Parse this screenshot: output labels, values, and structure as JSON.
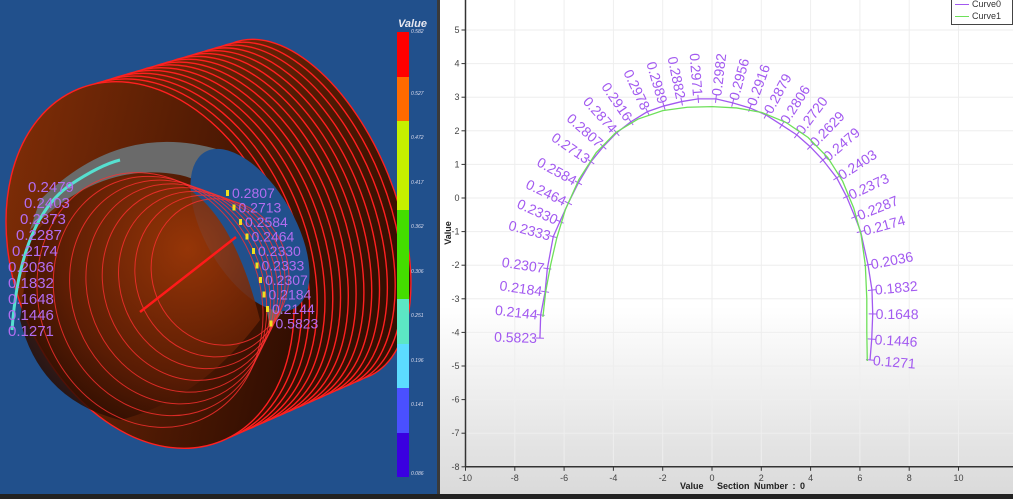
{
  "view3d": {
    "colorbar": {
      "title": "Value",
      "colors": [
        "#ff0000",
        "#ff6a00",
        "#c6f000",
        "#c6f000",
        "#44dd00",
        "#44dd00",
        "#5ce6c4",
        "#5cdcff",
        "#4a50ff",
        "#3a00e0"
      ],
      "labels": [
        "0.582",
        "0.527",
        "0.472",
        "0.417",
        "0.362",
        "0.306",
        "0.251",
        "0.196",
        "0.141",
        "0.086"
      ]
    },
    "overlay_left": [
      "0.2479",
      "0.2403",
      "0.2373",
      "0.2287",
      "0.2174",
      "0.2036",
      "0.1832",
      "0.1648",
      "0.1446",
      "0.1271"
    ],
    "overlay_right": [
      "0.2807",
      "0.2713",
      "0.2584",
      "0.2464",
      "0.2330",
      "0.2333",
      "0.2307",
      "0.2184",
      "0.2144",
      "0.5823"
    ],
    "label_color": "#b26df0",
    "background": "#21508c"
  },
  "chart_data": {
    "type": "line",
    "title": "",
    "xlabel": "Value",
    "xlabel_extra": "Section Number : 0",
    "ylabel": "Value",
    "xlim": [
      -10,
      10
    ],
    "ylim": [
      -8,
      5.9
    ],
    "xticks": [
      -10,
      -8,
      -6,
      -4,
      -2,
      0,
      2,
      4,
      6,
      8,
      10
    ],
    "yticks": [
      5,
      4,
      3,
      2,
      1,
      0,
      -1,
      -2,
      -3,
      -4,
      -5,
      -6,
      -7,
      -8
    ],
    "grid": true,
    "legend_position": "top-right",
    "series": [
      {
        "name": "Curve0",
        "color": "#a259f0",
        "points": [
          [
            -6.98,
            -4.17
          ],
          [
            -6.95,
            -3.48
          ],
          [
            -6.77,
            -2.79
          ],
          [
            -6.68,
            -2.1
          ],
          [
            -6.44,
            -1.15
          ],
          [
            -6.17,
            -0.7
          ],
          [
            -5.83,
            -0.15
          ],
          [
            -5.42,
            0.45
          ],
          [
            -4.91,
            1.08
          ],
          [
            -4.41,
            1.53
          ],
          [
            -3.87,
            1.94
          ],
          [
            -3.29,
            2.27
          ],
          [
            -2.62,
            2.57
          ],
          [
            -1.95,
            2.74
          ],
          [
            -1.23,
            2.87
          ],
          [
            -0.56,
            2.95
          ],
          [
            0.16,
            2.95
          ],
          [
            0.84,
            2.83
          ],
          [
            1.54,
            2.68
          ],
          [
            2.19,
            2.47
          ],
          [
            2.83,
            2.17
          ],
          [
            3.44,
            1.88
          ],
          [
            3.98,
            1.53
          ],
          [
            4.5,
            1.13
          ],
          [
            5.06,
            0.6
          ],
          [
            5.46,
            0.04
          ],
          [
            5.8,
            -0.56
          ],
          [
            6.03,
            -1.0
          ],
          [
            6.33,
            -1.99
          ],
          [
            6.49,
            -2.74
          ],
          [
            6.52,
            -3.45
          ],
          [
            6.48,
            -4.2
          ],
          [
            6.41,
            -4.82
          ]
        ],
        "labels": [
          "0.5823",
          "0.2144",
          "0.2184",
          "0.2307",
          "0.2333",
          "0.2330",
          "0.2464",
          "0.2584",
          "0.2713",
          "0.2807",
          "0.2874",
          "0.2916",
          "0.2978",
          "0.2989",
          "0.2882",
          "0.2971",
          "0.2982",
          "0.2956",
          "0.2916",
          "0.2879",
          "0.2806",
          "0.2720",
          "0.2629",
          "0.2479",
          "0.2403",
          "0.2373",
          "0.2287",
          "0.2174",
          "0.2036",
          "0.1832",
          "0.1648",
          "0.1446",
          "0.1271"
        ]
      },
      {
        "name": "Curve1",
        "color": "#6ee05a",
        "points": [
          [
            -6.86,
            -3.54
          ],
          [
            -6.75,
            -2.8
          ],
          [
            -6.55,
            -2.0
          ],
          [
            -6.3,
            -1.2
          ],
          [
            -5.95,
            -0.35
          ],
          [
            -5.4,
            0.55
          ],
          [
            -4.7,
            1.35
          ],
          [
            -3.9,
            1.95
          ],
          [
            -3.0,
            2.35
          ],
          [
            -2.0,
            2.6
          ],
          [
            -1.0,
            2.7
          ],
          [
            0,
            2.72
          ],
          [
            1.0,
            2.68
          ],
          [
            2.0,
            2.55
          ],
          [
            3.0,
            2.25
          ],
          [
            3.9,
            1.8
          ],
          [
            4.7,
            1.2
          ],
          [
            5.3,
            0.5
          ],
          [
            5.75,
            -0.3
          ],
          [
            6.05,
            -1.1
          ],
          [
            6.22,
            -2.0
          ],
          [
            6.28,
            -3.0
          ],
          [
            6.28,
            -4.0
          ],
          [
            6.3,
            -4.85
          ]
        ]
      }
    ]
  }
}
